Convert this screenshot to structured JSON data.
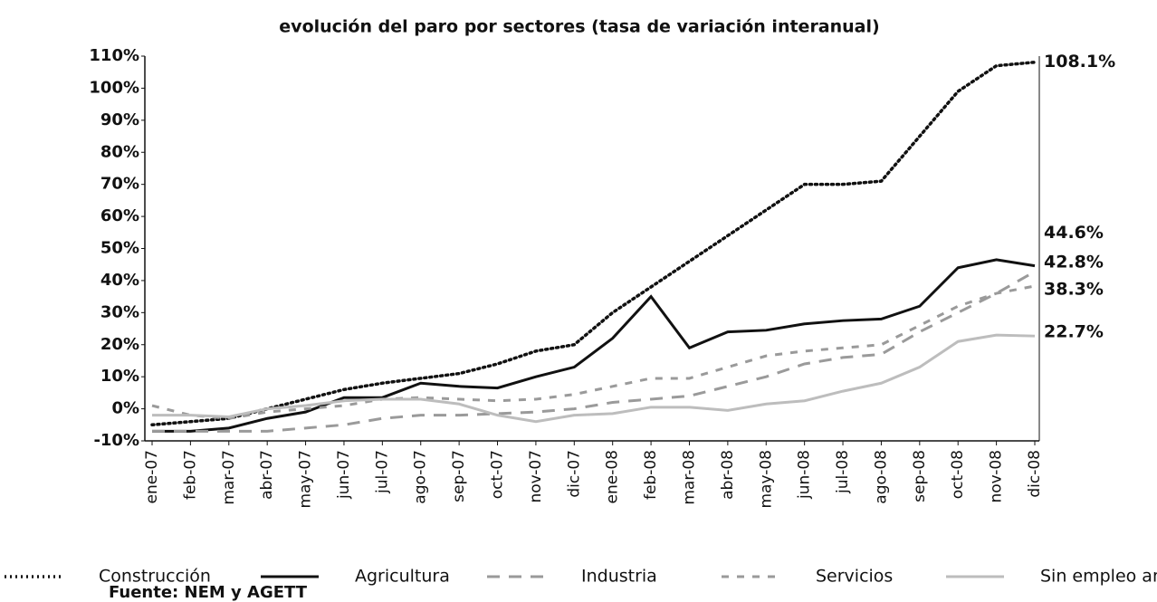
{
  "chart_data": {
    "type": "line",
    "title": "evolución del paro por sectores  (tasa de variación interanual)",
    "source": "Fuente: NEM y AGETT",
    "categories": [
      "ene-07",
      "feb-07",
      "mar-07",
      "abr-07",
      "may-07",
      "jun-07",
      "jul-07",
      "ago-07",
      "sep-07",
      "oct-07",
      "nov-07",
      "dic-07",
      "ene-08",
      "feb-08",
      "mar-08",
      "abr-08",
      "may-08",
      "jun-08",
      "jul-08",
      "ago-08",
      "sep-08",
      "oct-08",
      "nov-08",
      "dic-08"
    ],
    "ylim": [
      -10,
      110
    ],
    "yticks": [
      {
        "value": 110,
        "label": "110%"
      },
      {
        "value": 100,
        "label": "100%"
      },
      {
        "value": 90,
        "label": "90%"
      },
      {
        "value": 80,
        "label": "80%"
      },
      {
        "value": 70,
        "label": "70%"
      },
      {
        "value": 60,
        "label": "60%"
      },
      {
        "value": 50,
        "label": "50%"
      },
      {
        "value": 40,
        "label": "40%"
      },
      {
        "value": 30,
        "label": "30%"
      },
      {
        "value": 20,
        "label": "20%"
      },
      {
        "value": 10,
        "label": "10%"
      },
      {
        "value": 0,
        "label": "0%"
      },
      {
        "value": -10,
        "label": "-10%"
      }
    ],
    "grid": false,
    "legend": "bottom",
    "series": [
      {
        "name": "Construcción",
        "color": "#111111",
        "style": "dotted",
        "values": [
          -5,
          -4,
          -3,
          0,
          3,
          6,
          8,
          9.5,
          11,
          14,
          18,
          20,
          30,
          38,
          46,
          54,
          62,
          70,
          70,
          71,
          85,
          99,
          107,
          108.1
        ],
        "value_labels": [
          null,
          null,
          null,
          null,
          null,
          null,
          null,
          null,
          null,
          null,
          null,
          null,
          null,
          null,
          null,
          null,
          null,
          null,
          null,
          null,
          null,
          null,
          null,
          "108.1%"
        ]
      },
      {
        "name": "Agricultura",
        "color": "#111111",
        "style": "solid",
        "values": [
          -7,
          -7,
          -6,
          -3,
          -1,
          3.5,
          3.5,
          8,
          7,
          6.5,
          10,
          13,
          22,
          35,
          19,
          24,
          24.5,
          26.5,
          27.5,
          28,
          32,
          44,
          46.5,
          44.6
        ],
        "value_labels": [
          null,
          null,
          null,
          null,
          null,
          null,
          null,
          null,
          null,
          null,
          null,
          null,
          null,
          null,
          null,
          null,
          null,
          null,
          null,
          null,
          null,
          null,
          null,
          "44.6%"
        ]
      },
      {
        "name": "Industria",
        "color": "#9a9a9a",
        "style": "long-dash",
        "values": [
          -7,
          -7,
          -7,
          -7,
          -6,
          -5,
          -3,
          -2,
          -2,
          -1.5,
          -1,
          0,
          2,
          3,
          4,
          7,
          10,
          14,
          16,
          17,
          24,
          30,
          36,
          42.8
        ],
        "value_labels": [
          null,
          null,
          null,
          null,
          null,
          null,
          null,
          null,
          null,
          null,
          null,
          null,
          null,
          null,
          null,
          null,
          null,
          null,
          null,
          null,
          null,
          null,
          null,
          "42.8%"
        ]
      },
      {
        "name": "Servicios",
        "color": "#9a9a9a",
        "style": "short-dash",
        "values": [
          1,
          -2,
          -3,
          -1,
          0,
          1,
          3,
          3.5,
          3,
          2.5,
          3,
          4.5,
          7,
          9.5,
          9.5,
          13,
          16.5,
          18,
          19,
          20,
          26,
          32,
          36,
          38.3
        ],
        "value_labels": [
          null,
          null,
          null,
          null,
          null,
          null,
          null,
          null,
          null,
          null,
          null,
          null,
          null,
          null,
          null,
          null,
          null,
          null,
          null,
          null,
          null,
          null,
          null,
          "38.3%"
        ]
      },
      {
        "name": "Sin empleo anterior",
        "color": "#bdbdbd",
        "style": "solid",
        "values": [
          -2,
          -2,
          -2.5,
          0,
          1,
          2.5,
          3,
          3,
          1.5,
          -2,
          -4,
          -2,
          -1.5,
          0.5,
          0.5,
          -0.5,
          1.5,
          2.5,
          5.5,
          8,
          13,
          21,
          23,
          22.7
        ],
        "value_labels": [
          null,
          null,
          null,
          null,
          null,
          null,
          null,
          null,
          null,
          null,
          null,
          null,
          null,
          null,
          null,
          null,
          null,
          null,
          null,
          null,
          null,
          null,
          null,
          "22.7%"
        ]
      }
    ]
  }
}
